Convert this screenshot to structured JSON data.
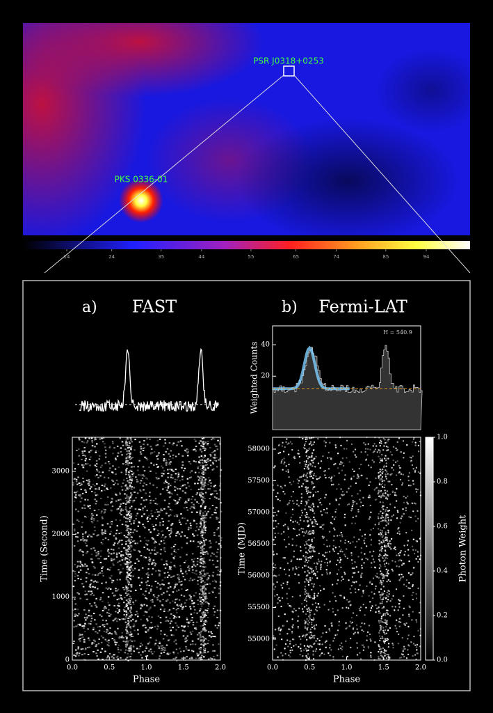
{
  "sky_map": {
    "sources": [
      "PSR J0318+0253",
      "PKS 0336-01"
    ],
    "colorbar_lim": [
      4.25,
      103.75
    ],
    "colorbar_ticks": [
      14,
      24,
      35,
      44,
      55,
      65,
      74,
      85,
      94
    ]
  },
  "panel_a": {
    "label": "a)",
    "title": "FAST",
    "ylabel": "Time (Second)",
    "xlabel": "Phase",
    "xlim": [
      0,
      2
    ],
    "xticks": [
      {
        "value": 0,
        "label": "0.0"
      },
      0.5,
      {
        "value": 1,
        "label": "1.0"
      },
      1.5,
      {
        "value": 2,
        "label": "2.0"
      }
    ],
    "ylim": [
      0,
      3543
    ],
    "yticks": [
      0,
      1000,
      2000,
      3000
    ]
  },
  "panel_b": {
    "label": "b)",
    "title": "Fermi-LAT",
    "profile_ylabel": "Weighted Counts",
    "profile_annotation": "H = 540.9",
    "profile_ylim": [
      -14,
      52
    ],
    "profile_yticks": [
      20,
      40
    ],
    "ylabel": "Time (MJD)",
    "xlabel": "Phase",
    "xlim": [
      0,
      2
    ],
    "xticks": [
      {
        "value": 0,
        "label": "0.0"
      },
      0.5,
      {
        "value": 1,
        "label": "1.0"
      },
      1.5,
      {
        "value": 2,
        "label": "2.0"
      }
    ],
    "ylim": [
      54670,
      58187
    ],
    "yticks": [
      55000,
      55500,
      56000,
      56500,
      57000,
      57500,
      58000
    ],
    "colorbar_label": "Photon Weight",
    "colorbar_lim": [
      0,
      1
    ],
    "colorbar_ticks": [
      {
        "value": 0,
        "label": "0.0"
      },
      0.2,
      0.4,
      0.6,
      0.8,
      {
        "value": 1,
        "label": "1.0"
      }
    ]
  }
}
